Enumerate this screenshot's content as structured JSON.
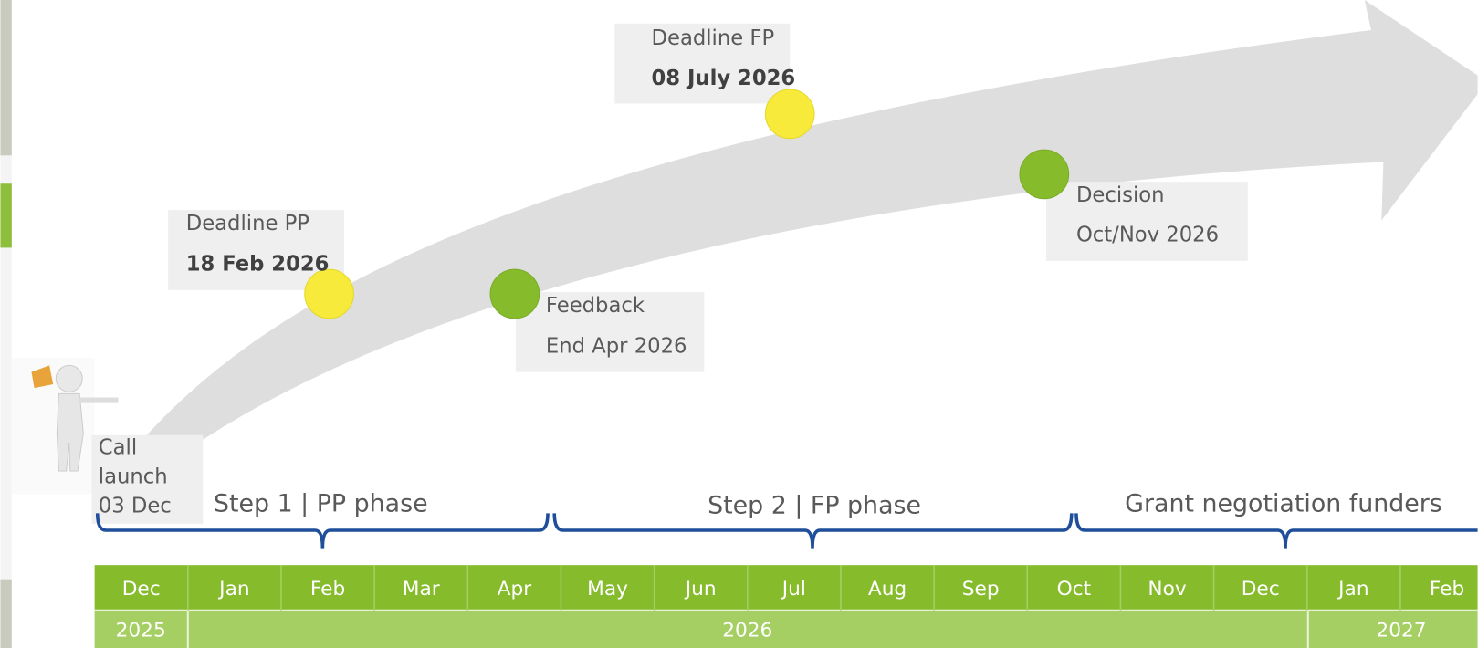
{
  "call_launch": "Call launch 03 Dec",
  "milestones": [
    {
      "title": "Deadline PP",
      "date": "18 Feb 2026"
    },
    {
      "title": "Feedback",
      "date": "End Apr 2026"
    },
    {
      "title": "Deadline FP",
      "date": "08 July 2026"
    },
    {
      "title": "Decision",
      "date": "Oct/Nov 2026"
    }
  ],
  "phases": [
    "Step 1 | PP phase",
    "Step 2 | FP phase",
    "Grant negotiation funders"
  ],
  "months": [
    "Dec",
    "Jan",
    "Feb",
    "Mar",
    "Apr",
    "May",
    "Jun",
    "Jul",
    "Aug",
    "Sep",
    "Oct",
    "Nov",
    "Dec",
    "Jan",
    "Feb"
  ],
  "years": [
    "2025",
    "2026",
    "2027"
  ]
}
